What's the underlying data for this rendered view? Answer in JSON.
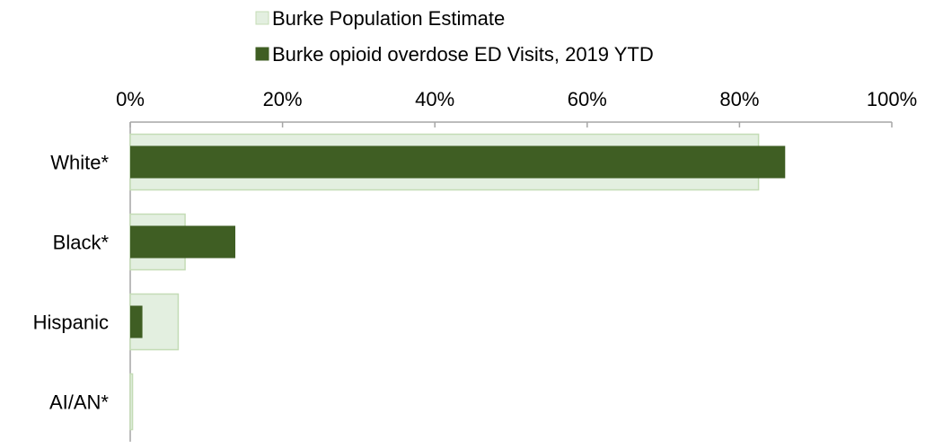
{
  "chart_data": {
    "type": "bar",
    "orientation": "horizontal",
    "categories": [
      "White*",
      "Black*",
      "Hispanic",
      "AI/AN*"
    ],
    "series": [
      {
        "name": "Burke Population Estimate",
        "values": [
          82.5,
          7.2,
          6.3,
          0.3
        ],
        "color": "#e3efe0",
        "stroke": "#c4dcb6"
      },
      {
        "name": "Burke opioid overdose ED Visits, 2019 YTD",
        "values": [
          86.0,
          13.8,
          1.6,
          0.0
        ],
        "color": "#3f5e23"
      }
    ],
    "x_ticks": [
      "0%",
      "20%",
      "40%",
      "60%",
      "80%",
      "100%"
    ],
    "xlim": [
      0,
      100
    ],
    "axis_position": "top",
    "legend_position": "top",
    "grid": false
  }
}
